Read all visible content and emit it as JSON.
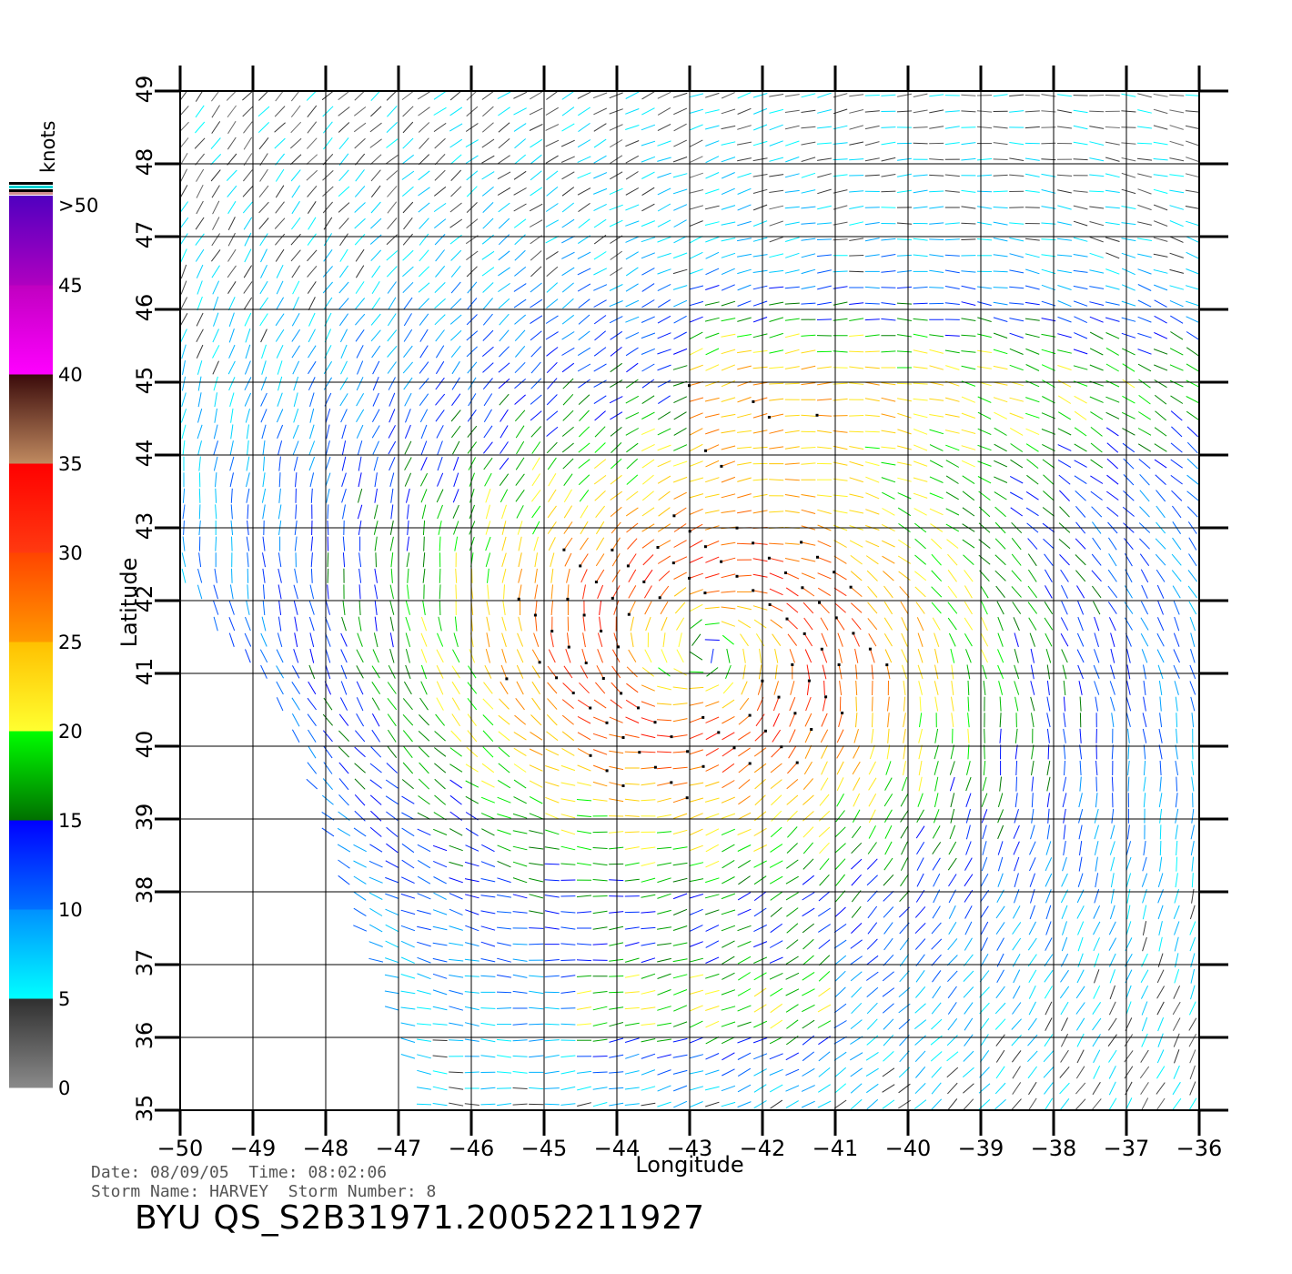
{
  "chart_data": {
    "type": "wind_vector_map",
    "xlabel": "Longitude",
    "ylabel": "Latitude",
    "xlim": [
      -50,
      -36
    ],
    "ylim": [
      35,
      49
    ],
    "x_ticks": [
      -50,
      -49,
      -48,
      -47,
      -46,
      -45,
      -44,
      -43,
      -42,
      -41,
      -40,
      -39,
      -38,
      -37,
      -36
    ],
    "y_ticks": [
      35,
      36,
      37,
      38,
      39,
      40,
      41,
      42,
      43,
      44,
      45,
      46,
      47,
      48,
      49
    ],
    "x_tick_labels": [
      "−50",
      "−49",
      "−48",
      "−47",
      "−46",
      "−45",
      "−44",
      "−43",
      "−42",
      "−41",
      "−40",
      "−39",
      "−38",
      "−37",
      "−36"
    ],
    "y_tick_labels": [
      "35",
      "36",
      "37",
      "38",
      "39",
      "40",
      "41",
      "42",
      "43",
      "44",
      "45",
      "46",
      "47",
      "48",
      "49"
    ],
    "grid": true,
    "storm_center": {
      "lon": -42.8,
      "lat": 41.3
    },
    "swath_west_edge": [
      [
        -50,
        42.3
      ],
      [
        -48.6,
        40.5
      ],
      [
        -47,
        36
      ],
      [
        -46.7,
        35
      ]
    ],
    "colorbar": {
      "unit": "knots",
      "labels": [
        "0",
        "5",
        "10",
        "15",
        "20",
        "25",
        "30",
        "35",
        "40",
        "45",
        ">50"
      ],
      "stops": [
        {
          "from": 0,
          "to": 5,
          "colors": [
            "#8a8a8a",
            "#2f2f2f"
          ]
        },
        {
          "from": 5,
          "to": 10,
          "colors": [
            "#00ffff",
            "#0090ff"
          ]
        },
        {
          "from": 10,
          "to": 15,
          "colors": [
            "#0070ff",
            "#0000ff"
          ]
        },
        {
          "from": 15,
          "to": 20,
          "colors": [
            "#007000",
            "#00ff00"
          ]
        },
        {
          "from": 20,
          "to": 25,
          "colors": [
            "#ffff30",
            "#ffc000"
          ]
        },
        {
          "from": 25,
          "to": 30,
          "colors": [
            "#ff9900",
            "#ff4400"
          ]
        },
        {
          "from": 30,
          "to": 35,
          "colors": [
            "#ff3a10",
            "#ff0000"
          ]
        },
        {
          "from": 35,
          "to": 40,
          "colors": [
            "#c08a60",
            "#3a0a0a"
          ]
        },
        {
          "from": 40,
          "to": 45,
          "colors": [
            "#ff00ff",
            "#c000c0"
          ]
        },
        {
          "from": 45,
          "to": 50,
          "colors": [
            "#b000c0",
            "#5000c0"
          ]
        }
      ]
    }
  },
  "info": {
    "date_label": "Date:",
    "date": "08/09/05",
    "time_label": "Time:",
    "time": "08:02:06",
    "storm_name_label": "Storm Name:",
    "storm_name": "HARVEY",
    "storm_number_label": "Storm Number:",
    "storm_number": "8",
    "product": "BYU QS_S2B31971.20052211927"
  }
}
